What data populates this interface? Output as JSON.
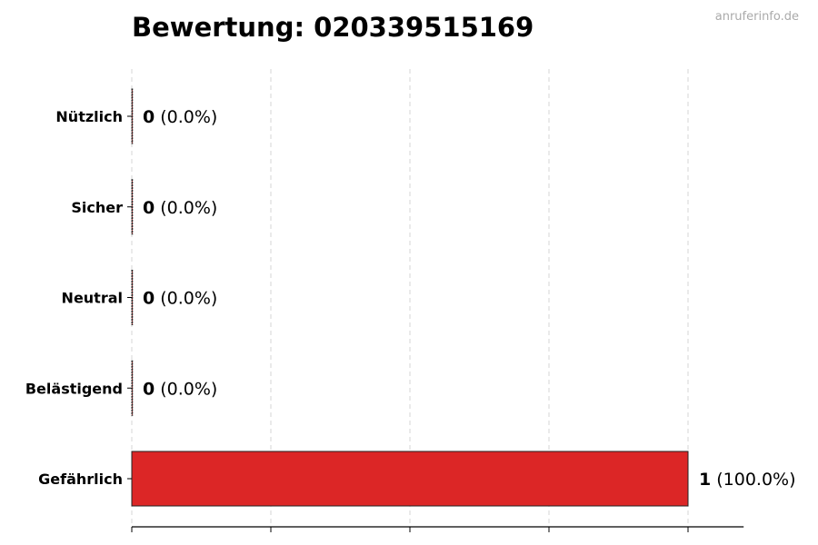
{
  "chart_data": {
    "type": "bar",
    "orientation": "horizontal",
    "title": "Bewertung: 020339515169",
    "watermark": "anruferinfo.de",
    "categories": [
      "Nützlich",
      "Sicher",
      "Neutral",
      "Belästigend",
      "Gefährlich"
    ],
    "values": [
      0,
      0,
      0,
      0,
      1
    ],
    "labels": [
      {
        "count": "0",
        "pct": "(0.0%)"
      },
      {
        "count": "0",
        "pct": "(0.0%)"
      },
      {
        "count": "0",
        "pct": "(0.0%)"
      },
      {
        "count": "0",
        "pct": "(0.0%)"
      },
      {
        "count": "1",
        "pct": "(100.0%)"
      }
    ],
    "xlim": [
      0,
      1.1
    ],
    "xticks": [
      0,
      0.25,
      0.5,
      0.75,
      1.0
    ],
    "xtick_labels_shown": false,
    "grid": "x, dashed",
    "bar_color": "#dc2626",
    "xlabel": "",
    "ylabel": ""
  }
}
